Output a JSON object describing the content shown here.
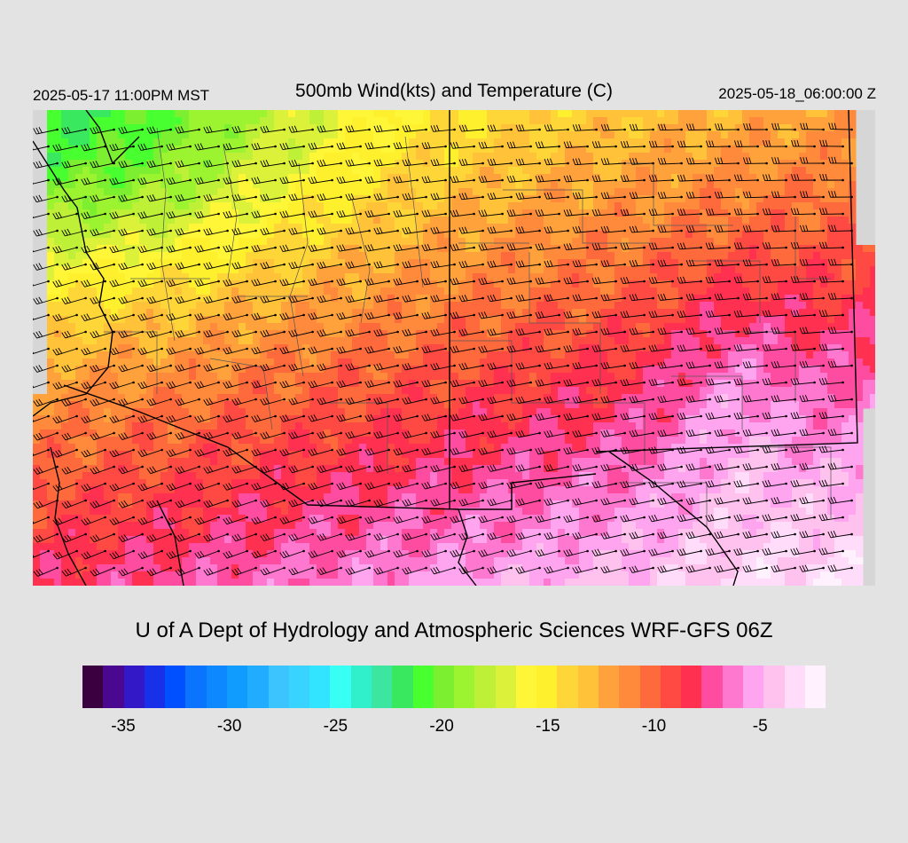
{
  "header": {
    "valid_local": "2025-05-17 11:00PM MST",
    "title": "500mb Wind(kts) and Temperature (C)",
    "valid_utc": "2025-05-18_06:00:00 Z"
  },
  "credit": "U of A Dept of Hydrology and Atmospheric Sciences WRF-GFS 06Z",
  "colorbar": {
    "colors": [
      "#3a0040",
      "#4a0890",
      "#3318c8",
      "#1830e8",
      "#0050ff",
      "#0a74ff",
      "#0d88ff",
      "#109cff",
      "#22acff",
      "#3cc4ff",
      "#38d4ff",
      "#32e4ff",
      "#38fff4",
      "#30f0cc",
      "#3ce6a0",
      "#3ae860",
      "#48ff30",
      "#7cf030",
      "#9cf430",
      "#bef038",
      "#dcf23a",
      "#fff638",
      "#fff02e",
      "#ffd638",
      "#ffc238",
      "#ffa23c",
      "#ff8a3c",
      "#ff6a3c",
      "#ff4a44",
      "#ff3050",
      "#fe4ca0",
      "#ff78d0",
      "#ffa4ee",
      "#ffc2ee",
      "#ffdcfa",
      "#fff2fe"
    ],
    "labels": [
      "-35",
      "-30",
      "-25",
      "-20",
      "-15",
      "-10",
      "-5"
    ],
    "label_values": [
      -35,
      -30,
      -25,
      -20,
      -15,
      -10,
      -5
    ],
    "range": [
      -36,
      -1
    ]
  },
  "map": {
    "field": "500mb temperature (C) shaded, wind barbs (kts)",
    "colors": {
      "background": "#d6d6d6",
      "boundary": "#000000",
      "county": "#555555"
    }
  }
}
